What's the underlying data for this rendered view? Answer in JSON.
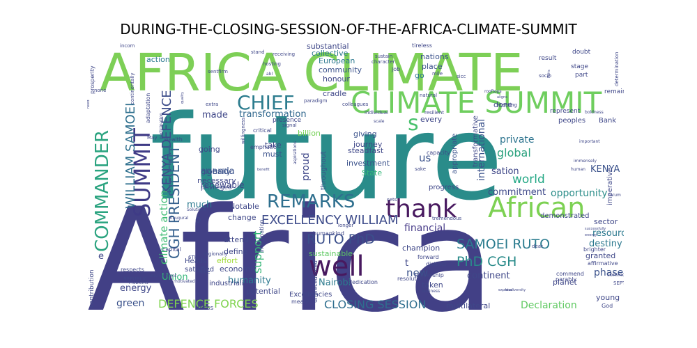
{
  "chart_data": {
    "type": "wordcloud",
    "title": "DURING-THE-CLOSING-SESSION-OF-THE-AFRICA-CLIMATE-SUMMIT",
    "words": [
      {
        "text": "Africa",
        "color": "#424086"
      },
      {
        "text": "future",
        "color": "#2a8c8a"
      },
      {
        "text": "AFRICA CLIMATE",
        "color": "#7dcf56"
      },
      {
        "text": "CLIMATE SUMMIT",
        "color": "#6fce5e"
      },
      {
        "text": "African",
        "color": "#7dd153"
      },
      {
        "text": "thank",
        "color": "#48195f"
      },
      {
        "text": "well",
        "color": "#48195f"
      },
      {
        "text": "REMARKS",
        "color": "#2e6f8e"
      },
      {
        "text": "COMMANDER",
        "color": "#2aa37f"
      },
      {
        "text": "SUMMIT",
        "color": "#3f3b86"
      },
      {
        "text": "CHIEF",
        "color": "#2c7c8e"
      },
      {
        "text": "EXCELLENCY WILLIAM",
        "color": "#3d4b8a"
      },
      {
        "text": "WILLIAM SAMOEI",
        "color": "#2f708e"
      },
      {
        "text": "KENYA DEFENCE",
        "color": "#3c4c8a"
      },
      {
        "text": "CGH PRESIDENT",
        "color": "#35608d"
      },
      {
        "text": "climate action",
        "color": "#3fbc74"
      },
      {
        "text": "RUTO PhD",
        "color": "#3b4f8b"
      },
      {
        "text": "SAMOEI RUTO",
        "color": "#2a7b8e"
      },
      {
        "text": "PhD CGH",
        "color": "#2a8b8a"
      },
      {
        "text": "DEFENCE FORCES",
        "color": "#7fd34e"
      },
      {
        "text": "CLOSING SESSION",
        "color": "#2e6e8e"
      },
      {
        "text": "Declaration",
        "color": "#5fc961"
      },
      {
        "text": "s",
        "color": "#49c16d"
      },
      {
        "text": "us",
        "color": "#3b528b"
      },
      {
        "text": "support",
        "color": "#37b678"
      },
      {
        "text": "world",
        "color": "#22a784"
      },
      {
        "text": "global",
        "color": "#2ba27e"
      },
      {
        "text": "commitment",
        "color": "#3e4989"
      },
      {
        "text": "opportunity",
        "color": "#2d8e8a"
      },
      {
        "text": "transformation",
        "color": "#31688e"
      },
      {
        "text": "agenda",
        "color": "#3b528b"
      },
      {
        "text": "made",
        "color": "#3f4788"
      },
      {
        "text": "private",
        "color": "#2c738e"
      },
      {
        "text": "international",
        "color": "#3b528b"
      },
      {
        "text": "proud",
        "color": "#3f4788"
      },
      {
        "text": "financial",
        "color": "#4a3e8a"
      },
      {
        "text": "new",
        "color": "#3b528b"
      },
      {
        "text": "humanity",
        "color": "#2a778e"
      },
      {
        "text": "green",
        "color": "#3b528b"
      },
      {
        "text": "energy",
        "color": "#3f4788"
      },
      {
        "text": "Union",
        "color": "#35b779"
      },
      {
        "text": "continent",
        "color": "#3f4788"
      },
      {
        "text": "Nairobi",
        "color": "#2c7b8e"
      },
      {
        "text": "much",
        "color": "#2a788e"
      },
      {
        "text": "renewable",
        "color": "#3f4788"
      },
      {
        "text": "globally",
        "color": "#3b528b"
      },
      {
        "text": "going",
        "color": "#3f4788"
      },
      {
        "text": "necessary",
        "color": "#3f4788"
      },
      {
        "text": "KENYA",
        "color": "#3b528b"
      },
      {
        "text": "phase",
        "color": "#3b528b"
      },
      {
        "text": "resource",
        "color": "#2a788e"
      },
      {
        "text": "destiny",
        "color": "#2a788e"
      },
      {
        "text": "sation",
        "color": "#3f4788"
      },
      {
        "text": "sustainable",
        "color": "#5ec962"
      },
      {
        "text": "champion",
        "color": "#3f4788"
      },
      {
        "text": "investment",
        "color": "#3b528b"
      },
      {
        "text": "journey",
        "color": "#3f4788"
      },
      {
        "text": "giving",
        "color": "#3b528b"
      },
      {
        "text": "billion",
        "color": "#74d055"
      },
      {
        "text": "take",
        "color": "#3f4788"
      },
      {
        "text": "must",
        "color": "#3b528b"
      },
      {
        "text": "steadfast",
        "color": "#3f4788"
      },
      {
        "text": "State",
        "color": "#35b779"
      },
      {
        "text": "collective",
        "color": "#2a788e"
      },
      {
        "text": "nations",
        "color": "#3b528b"
      },
      {
        "text": "substantial",
        "color": "#3f4788"
      },
      {
        "text": "European",
        "color": "#2a788e"
      },
      {
        "text": "community",
        "color": "#3b528b"
      },
      {
        "text": "honour",
        "color": "#3f4788"
      },
      {
        "text": "cradle",
        "color": "#3f4788"
      },
      {
        "text": "action",
        "color": "#2a788e"
      },
      {
        "text": "place",
        "color": "#3b528b"
      },
      {
        "text": "go",
        "color": "#2a788e"
      },
      {
        "text": "done",
        "color": "#3f4788"
      },
      {
        "text": "every",
        "color": "#3f4788"
      },
      {
        "text": "multilateral",
        "color": "#3f4788"
      },
      {
        "text": "Notable",
        "color": "#3f4788"
      },
      {
        "text": "change",
        "color": "#3f4788"
      },
      {
        "text": "attend",
        "color": "#3f4788"
      },
      {
        "text": "define",
        "color": "#3f4788"
      },
      {
        "text": "effort",
        "color": "#a0da39"
      },
      {
        "text": "economic",
        "color": "#3f4788"
      },
      {
        "text": "industriali",
        "color": "#3f4788"
      },
      {
        "text": "potential",
        "color": "#3f4788"
      },
      {
        "text": "Heads",
        "color": "#3f4788"
      },
      {
        "text": "satisfied",
        "color": "#3f4788"
      },
      {
        "text": "sector",
        "color": "#3f4788"
      },
      {
        "text": "granted",
        "color": "#3f4788"
      },
      {
        "text": "planet",
        "color": "#3f4788"
      },
      {
        "text": "young",
        "color": "#3f4788"
      },
      {
        "text": "taken",
        "color": "#3f4788"
      },
      {
        "text": "progress",
        "color": "#3f4788"
      },
      {
        "text": "demonstrated",
        "color": "#3f4788"
      },
      {
        "text": "imperative",
        "color": "#3f4788"
      },
      {
        "text": "o",
        "color": "#3f4788"
      },
      {
        "text": "e",
        "color": "#3f4788"
      },
      {
        "text": "t",
        "color": "#3f4788"
      },
      {
        "text": "Excellencies",
        "color": "#3f4788"
      },
      {
        "text": "throughout",
        "color": "#3b528b"
      },
      {
        "text": "appropriate",
        "color": "#3b528b"
      },
      {
        "text": "transformative",
        "color": "#3f4788"
      },
      {
        "text": "Bank",
        "color": "#3f4788"
      },
      {
        "text": "peoples",
        "color": "#3f4788"
      },
      {
        "text": "represent",
        "color": "#3f4788"
      },
      {
        "text": "result",
        "color": "#3f4788"
      },
      {
        "text": "stage",
        "color": "#3f4788"
      },
      {
        "text": "part",
        "color": "#3f4788"
      },
      {
        "text": "doubt",
        "color": "#3f4788"
      },
      {
        "text": "remain",
        "color": "#3f4788"
      },
      {
        "text": "contribution",
        "color": "#3f4788"
      },
      {
        "text": "privileged",
        "color": "#3f4788"
      },
      {
        "text": "wealth",
        "color": "#3f4788"
      },
      {
        "text": "adaptation",
        "color": "#3f4788"
      },
      {
        "text": "presence",
        "color": "#3f4788"
      },
      {
        "text": "critical",
        "color": "#3f4788"
      },
      {
        "text": "emphatic",
        "color": "#3f4788"
      },
      {
        "text": "capacity",
        "color": "#3f4788"
      },
      {
        "text": "forward",
        "color": "#3f4788"
      },
      {
        "text": "distinct",
        "color": "#3f4788"
      },
      {
        "text": "leadership",
        "color": "#3f4788"
      },
      {
        "text": "resolution",
        "color": "#3f4788"
      },
      {
        "text": "humankind",
        "color": "#3f4788"
      },
      {
        "text": "imagination",
        "color": "#3f4788"
      },
      {
        "text": "dedication",
        "color": "#3f4788"
      },
      {
        "text": "unprecedented",
        "color": "#3f4788"
      },
      {
        "text": "means",
        "color": "#3f4788"
      },
      {
        "text": "bless",
        "color": "#3f4788"
      },
      {
        "text": "capital",
        "color": "#3f4788"
      },
      {
        "text": "respects",
        "color": "#3f4788"
      },
      {
        "text": "REPUBLIC",
        "color": "#3f4788"
      },
      {
        "text": "SEPTEMBER",
        "color": "#3f4788"
      },
      {
        "text": "affirmative",
        "color": "#3f4788"
      },
      {
        "text": "brighter",
        "color": "#3f4788"
      },
      {
        "text": "commend",
        "color": "#3f4788"
      },
      {
        "text": "parably",
        "color": "#3f4788"
      },
      {
        "text": "God",
        "color": "#3f4788"
      },
      {
        "text": "tremendous",
        "color": "#3f4788"
      },
      {
        "text": "longer",
        "color": "#3f4788"
      },
      {
        "text": "sets",
        "color": "#3f4788"
      },
      {
        "text": "natural",
        "color": "#3f4788"
      },
      {
        "text": "meeting",
        "color": "#3f4788"
      },
      {
        "text": "sustain",
        "color": "#3f4788"
      },
      {
        "text": "character",
        "color": "#3f4788"
      },
      {
        "text": "job",
        "color": "#3f4788"
      },
      {
        "text": "tireless",
        "color": "#3f4788"
      },
      {
        "text": "hosting",
        "color": "#3f4788"
      },
      {
        "text": "receiving",
        "color": "#3f4788"
      },
      {
        "text": "stand",
        "color": "#3f4788"
      },
      {
        "text": "firm",
        "color": "#3f4788"
      },
      {
        "text": "sent",
        "color": "#3f4788"
      },
      {
        "text": "prosperity",
        "color": "#3f4788"
      },
      {
        "text": "continentally",
        "color": "#3f4788"
      },
      {
        "text": "participation",
        "color": "#3f4788"
      },
      {
        "text": "extra",
        "color": "#3f4788"
      },
      {
        "text": "willingness",
        "color": "#3f4788"
      },
      {
        "text": "paradigm",
        "color": "#3f4788"
      },
      {
        "text": "colleagues",
        "color": "#3f4788"
      },
      {
        "text": "individual",
        "color": "#3f4788"
      },
      {
        "text": "resilient",
        "color": "#3f4788"
      },
      {
        "text": "signal",
        "color": "#3f4788"
      },
      {
        "text": "incom",
        "color": "#3f4788"
      },
      {
        "text": "none",
        "color": "#3f4788"
      },
      {
        "text": "Note",
        "color": "#3f4788"
      },
      {
        "text": "regionally",
        "color": "#3f4788"
      },
      {
        "text": "6TH",
        "color": "#3f4788"
      },
      {
        "text": "environment",
        "color": "#3f4788"
      },
      {
        "text": "motivated",
        "color": "#3f4788"
      },
      {
        "text": "Problems",
        "color": "#3f4788"
      },
      {
        "text": "inaugural",
        "color": "#3f4788"
      },
      {
        "text": "Solutions",
        "color": "#3f4788"
      },
      {
        "text": "dear",
        "color": "#3f4788"
      },
      {
        "text": "common",
        "color": "#3f4788"
      },
      {
        "text": "boldness",
        "color": "#3f4788"
      },
      {
        "text": "forum",
        "color": "#3f4788"
      },
      {
        "text": "human",
        "color": "#3f4788"
      },
      {
        "text": "immensely",
        "color": "#3f4788"
      },
      {
        "text": "important",
        "color": "#3f4788"
      },
      {
        "text": "sake",
        "color": "#3f4788"
      },
      {
        "text": "May",
        "color": "#3f4788"
      },
      {
        "text": "mile",
        "color": "#3f4788"
      },
      {
        "text": "socio",
        "color": "#3f4788"
      },
      {
        "text": "determination",
        "color": "#3f4788"
      },
      {
        "text": "scale",
        "color": "#3f4788"
      },
      {
        "text": "Paris",
        "color": "#3f4788"
      },
      {
        "text": "abl",
        "color": "#3f4788"
      },
      {
        "text": "need",
        "color": "#3f4788"
      },
      {
        "text": "quality",
        "color": "#3f4788"
      },
      {
        "text": "benefit",
        "color": "#3f4788"
      },
      {
        "text": "business",
        "color": "#3f4788"
      },
      {
        "text": "express",
        "color": "#3f4788"
      },
      {
        "text": "biodiversity",
        "color": "#3f4788"
      },
      {
        "text": "successfully",
        "color": "#3f4788"
      },
      {
        "text": "energy",
        "color": "#3f4788"
      },
      {
        "text": "aligns",
        "color": "#3f4788"
      },
      {
        "text": "rooftops",
        "color": "#3f4788"
      },
      {
        "text": "sicc",
        "color": "#3f4788"
      },
      {
        "text": "aspirations",
        "color": "#3f4788"
      }
    ]
  }
}
